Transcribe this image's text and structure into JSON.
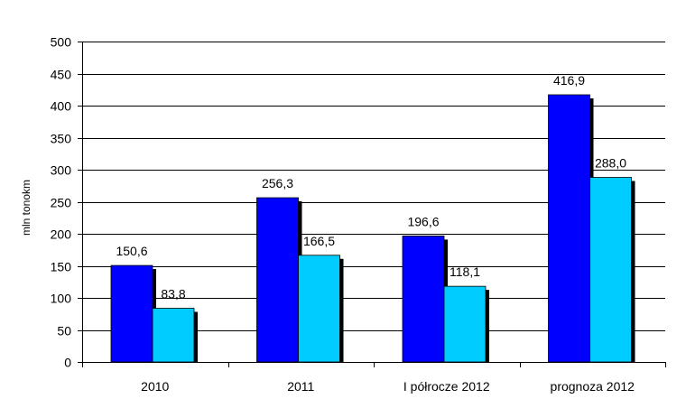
{
  "chart_data": {
    "type": "bar",
    "categories": [
      "2010",
      "2011",
      "I półrocze 2012",
      "prognoza 2012"
    ],
    "series": [
      {
        "name": "series-1",
        "color": "#0000FF",
        "values": [
          150.6,
          256.3,
          196.6,
          416.9
        ],
        "labels": [
          "150,6",
          "256,3",
          "196,6",
          "416,9"
        ]
      },
      {
        "name": "series-2",
        "color": "#00CCFF",
        "values": [
          83.8,
          166.5,
          118.1,
          288.0
        ],
        "labels": [
          "83,8",
          "166,5",
          "118,1",
          "288,0"
        ]
      }
    ],
    "ylabel": "mln tonokm",
    "xlabel": "",
    "ylim": [
      0,
      500
    ],
    "yticks": [
      0,
      50,
      100,
      150,
      200,
      250,
      300,
      350,
      400,
      450,
      500
    ],
    "grid": true,
    "shadow_color": "#000000"
  }
}
